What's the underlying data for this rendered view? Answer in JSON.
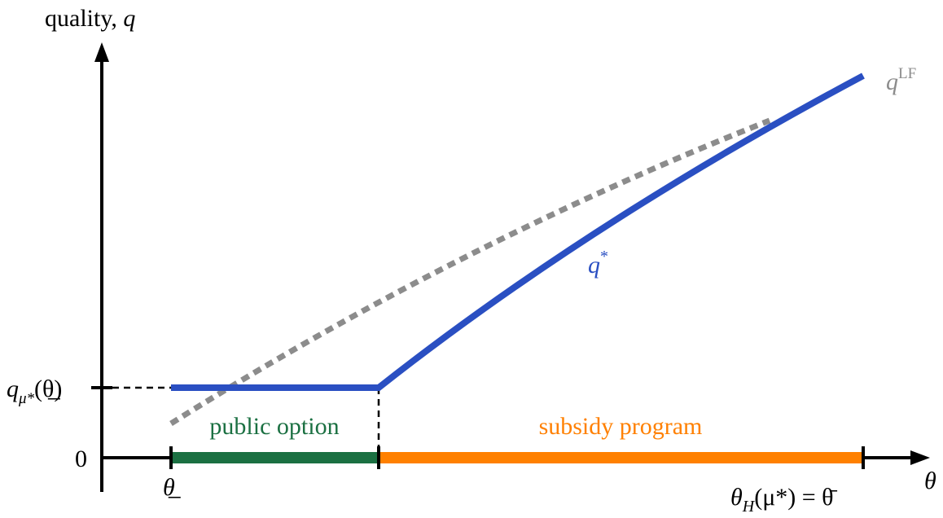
{
  "y_axis_label": {
    "text": "quality,",
    "symbol": "q"
  },
  "x_axis_label": "θ",
  "curves": {
    "laissez_faire": {
      "symbol": "q",
      "superscript": "LF"
    },
    "optimal": {
      "symbol": "q",
      "superscript": "*"
    }
  },
  "y_ticks": {
    "floor_quality": {
      "symbol": "q",
      "subscript": "μ*",
      "argument": "(θ̲)"
    },
    "zero": "0"
  },
  "x_ticks": {
    "theta_low": "θ̲",
    "theta_high": {
      "base": "θ",
      "subscript": "H",
      "rest": "(μ*) = θ̄"
    }
  },
  "regions": {
    "public_option": "public option",
    "subsidy_program": "subsidy program"
  }
}
